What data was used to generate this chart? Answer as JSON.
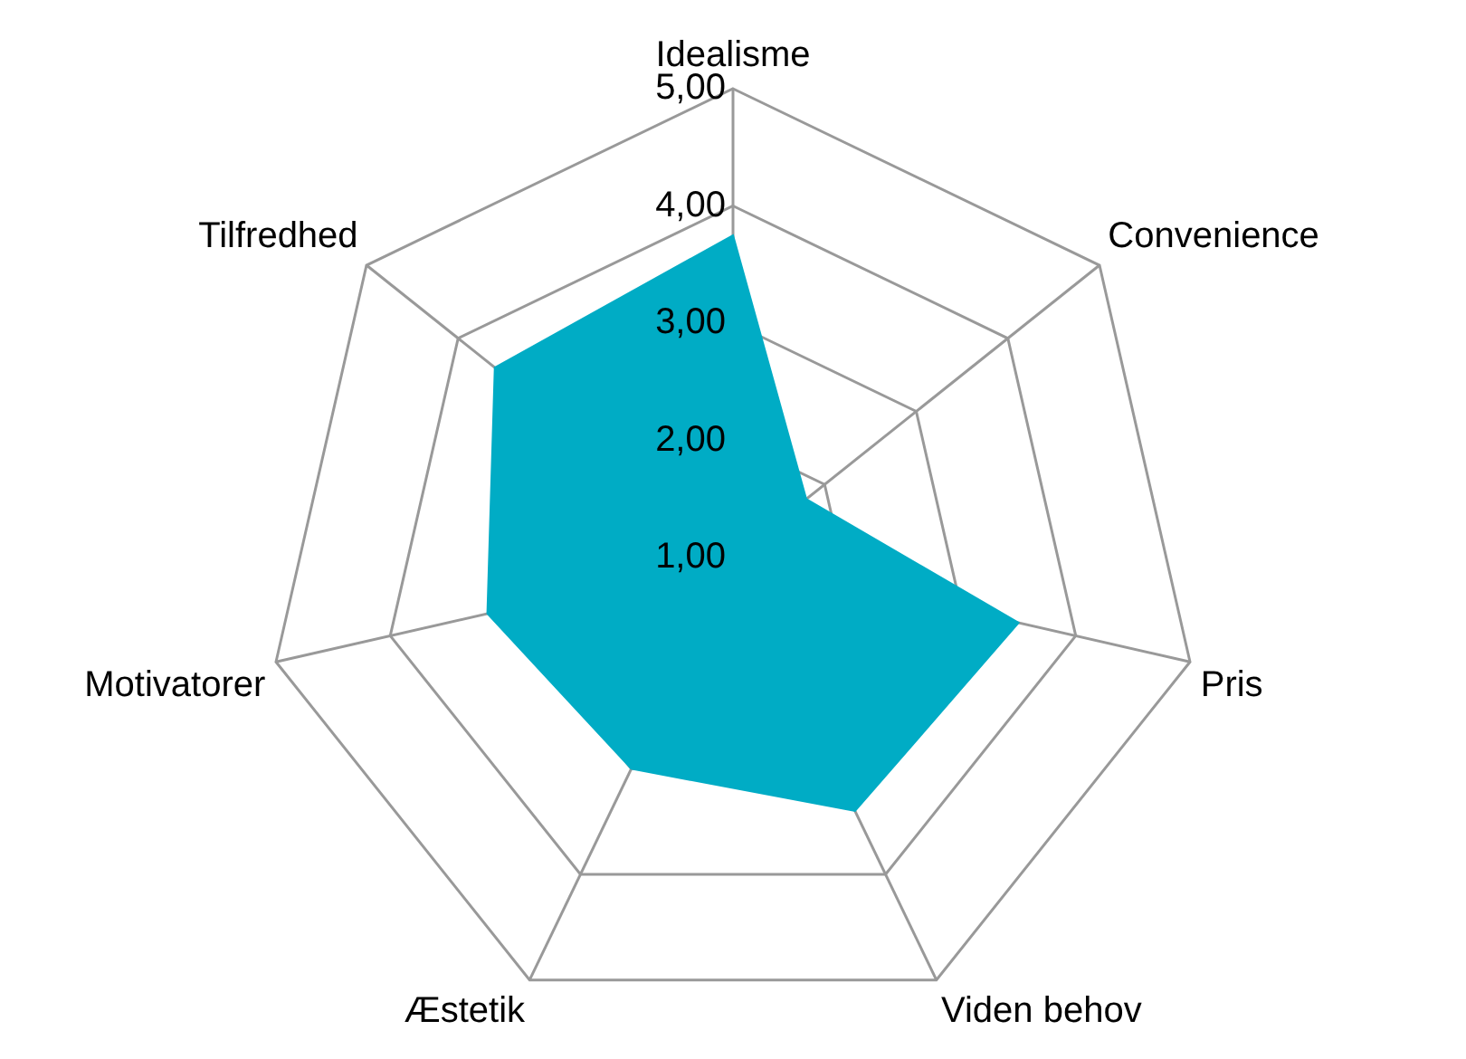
{
  "chart_data": {
    "type": "radar",
    "categories": [
      "Idealisme",
      "Convenience",
      "Pris",
      "Viden behov",
      "Æstetik",
      "Motivatorer",
      "Tilfredhed"
    ],
    "series": [
      {
        "color": "#00acc5",
        "values": [
          3.75,
          1.8,
          3.5,
          3.4,
          3.0,
          3.15,
          3.6
        ]
      }
    ],
    "ylim": [
      1,
      5
    ],
    "yticks": [
      {
        "value": 1,
        "label": "1,00"
      },
      {
        "value": 2,
        "label": "2,00"
      },
      {
        "value": 3,
        "label": "3,00"
      },
      {
        "value": 4,
        "label": "4,00"
      },
      {
        "value": 5,
        "label": "5,00"
      }
    ],
    "grid": true,
    "legend": false,
    "marker": "none"
  }
}
